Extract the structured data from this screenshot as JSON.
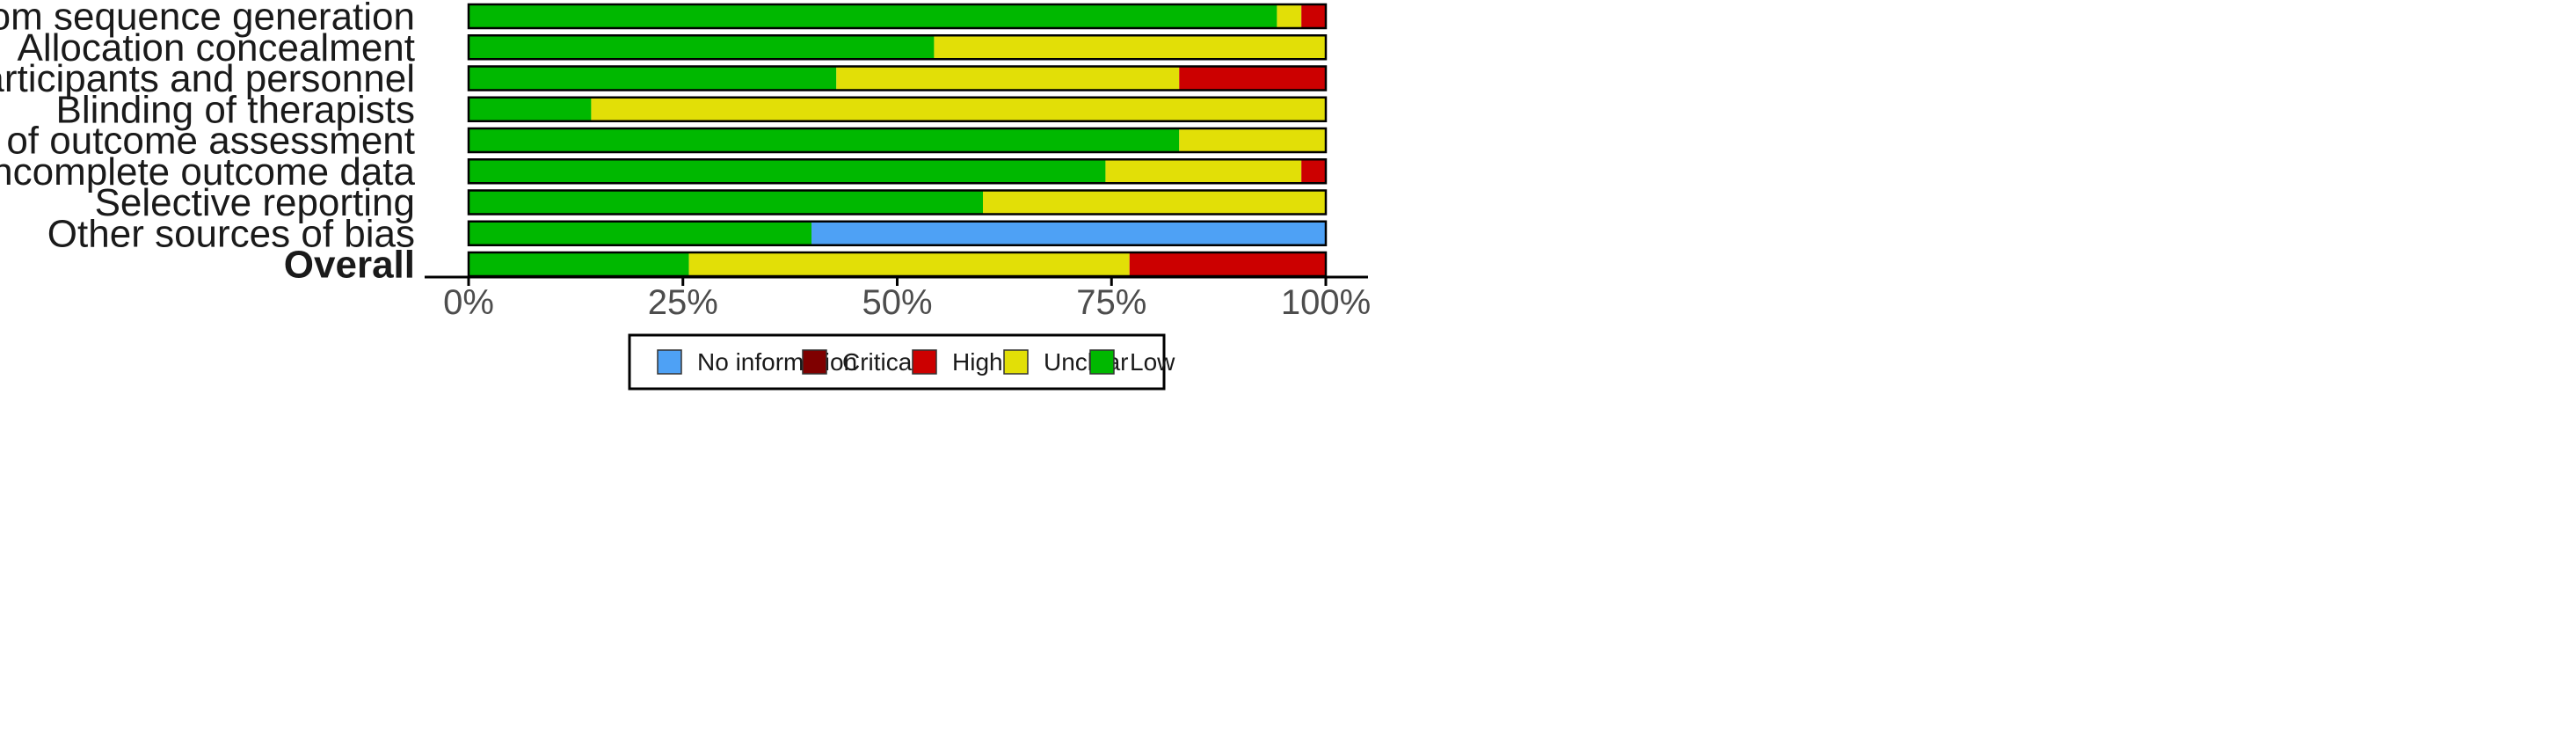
{
  "chart_data": {
    "type": "bar",
    "orientation": "horizontal",
    "stacked": true,
    "categories": [
      "Random sequence generation",
      "Allocation concealment",
      "Blinding of participants and personnel",
      "Blinding of therapists",
      "Blinding of outcome assessment",
      "Incomplete outcome data",
      "Selective reporting",
      "Other sources of bias",
      "Overall"
    ],
    "bold_categories": [
      "Overall"
    ],
    "series": [
      {
        "name": "Low",
        "color": "#00b800",
        "values": [
          94.3,
          54.3,
          42.9,
          14.3,
          82.9,
          74.3,
          60.0,
          40.0,
          25.7
        ]
      },
      {
        "name": "Unclear",
        "color": "#e2df07",
        "values": [
          2.85,
          45.7,
          40.0,
          85.7,
          17.1,
          22.85,
          40.0,
          0,
          51.4
        ]
      },
      {
        "name": "High",
        "color": "#cc0000",
        "values": [
          2.85,
          0,
          17.1,
          0,
          0,
          2.85,
          0,
          0,
          22.9
        ]
      },
      {
        "name": "Critical",
        "color": "#7f0000",
        "values": [
          0,
          0,
          0,
          0,
          0,
          0,
          0,
          0,
          0
        ]
      },
      {
        "name": "No information",
        "color": "#4ea1f5",
        "values": [
          0,
          0,
          0,
          0,
          0,
          0,
          0,
          60.0,
          0
        ]
      }
    ],
    "legend_order": [
      "No information",
      "Critical",
      "High",
      "Unclear",
      "Low"
    ],
    "legend_position": "bottom",
    "x_ticks": [
      "0%",
      "25%",
      "50%",
      "75%",
      "100%"
    ],
    "xlim": [
      0,
      100
    ],
    "grid": false,
    "title": "",
    "xlabel": "",
    "ylabel": ""
  }
}
